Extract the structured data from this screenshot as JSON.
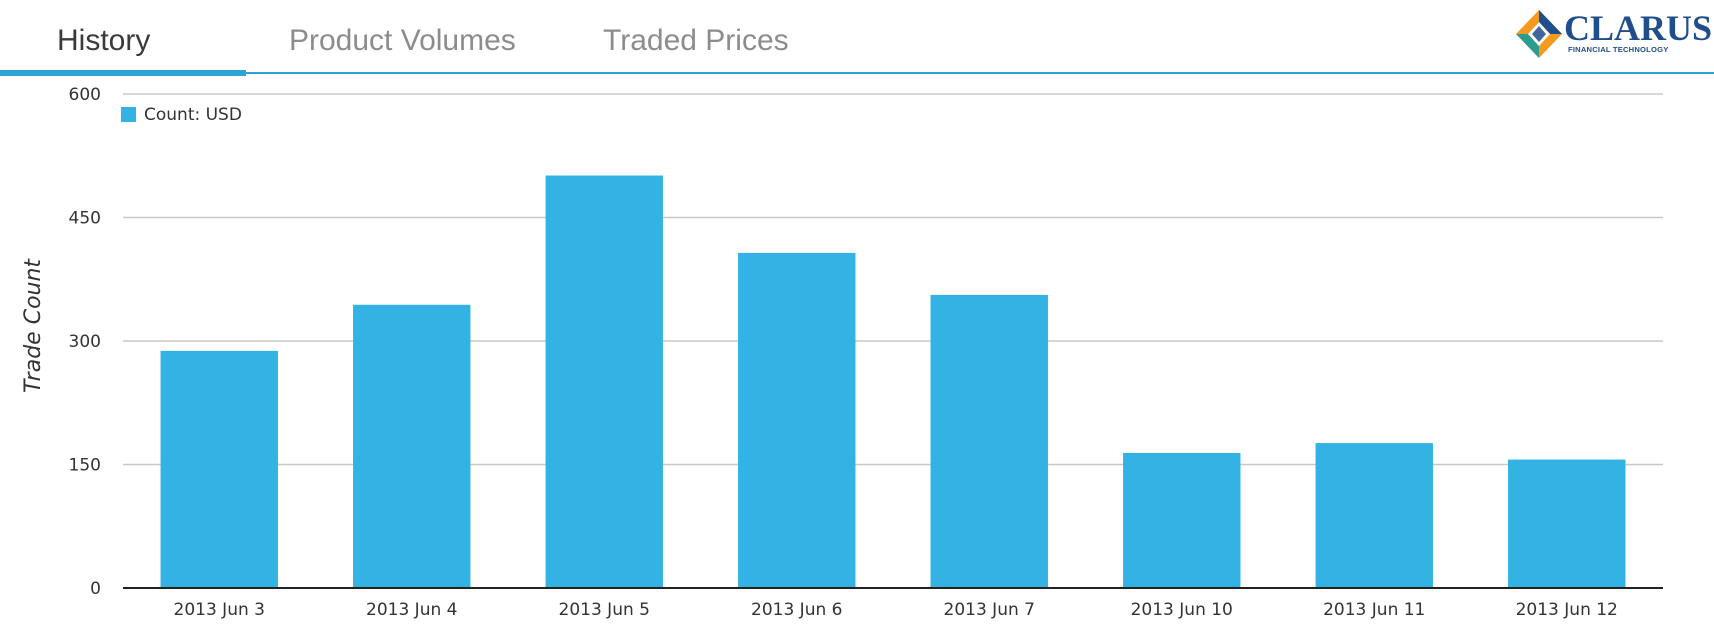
{
  "tabs": [
    {
      "label": "History",
      "active": true
    },
    {
      "label": "Product Volumes",
      "active": false
    },
    {
      "label": "Traded Prices",
      "active": false
    }
  ],
  "logo": {
    "name": "CLARUS",
    "tagline": "FINANCIAL TECHNOLOGY"
  },
  "colors": {
    "accent": "#2ea3d6",
    "bar": "#33b3e4",
    "grid": "#c8c8c8",
    "axis": "#222222"
  },
  "chart_data": {
    "type": "bar",
    "title": "",
    "xlabel": "",
    "ylabel": "Trade Count",
    "categories": [
      "2013 Jun 3",
      "2013 Jun 4",
      "2013 Jun 5",
      "2013 Jun 6",
      "2013 Jun 7",
      "2013 Jun 10",
      "2013 Jun 11",
      "2013 Jun 12"
    ],
    "series": [
      {
        "name": "Count: USD",
        "values": [
          288,
          344,
          501,
          407,
          356,
          164,
          176,
          156
        ]
      }
    ],
    "ylim": [
      0,
      600
    ],
    "yticks": [
      0,
      150,
      300,
      450,
      600
    ],
    "grid": true,
    "legend": "top-left"
  }
}
